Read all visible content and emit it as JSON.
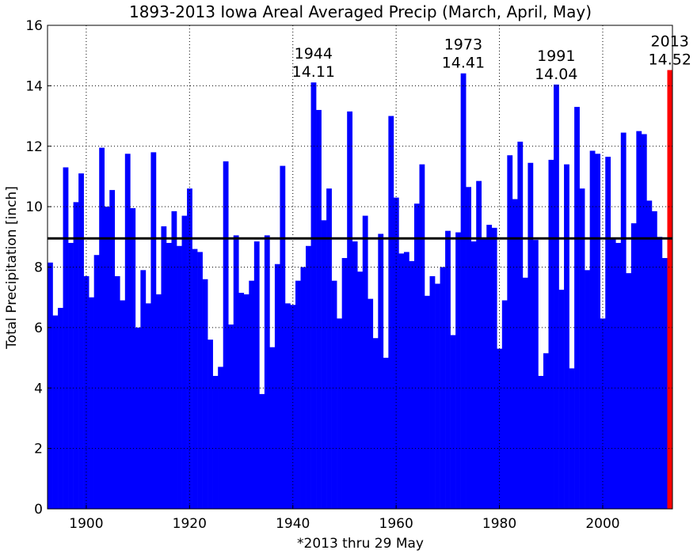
{
  "chart_data": {
    "type": "bar",
    "title": "1893-2013 Iowa Areal Averaged Precip (March, April, May)",
    "ylabel": "Total Precipitation [inch]",
    "footnote": "*2013 thru 29 May",
    "x": [
      1893,
      1894,
      1895,
      1896,
      1897,
      1898,
      1899,
      1900,
      1901,
      1902,
      1903,
      1904,
      1905,
      1906,
      1907,
      1908,
      1909,
      1910,
      1911,
      1912,
      1913,
      1914,
      1915,
      1916,
      1917,
      1918,
      1919,
      1920,
      1921,
      1922,
      1923,
      1924,
      1925,
      1926,
      1927,
      1928,
      1929,
      1930,
      1931,
      1932,
      1933,
      1934,
      1935,
      1936,
      1937,
      1938,
      1939,
      1940,
      1941,
      1942,
      1943,
      1944,
      1945,
      1946,
      1947,
      1948,
      1949,
      1950,
      1951,
      1952,
      1953,
      1954,
      1955,
      1956,
      1957,
      1958,
      1959,
      1960,
      1961,
      1962,
      1963,
      1964,
      1965,
      1966,
      1967,
      1968,
      1969,
      1970,
      1971,
      1972,
      1973,
      1974,
      1975,
      1976,
      1977,
      1978,
      1979,
      1980,
      1981,
      1982,
      1983,
      1984,
      1985,
      1986,
      1987,
      1988,
      1989,
      1990,
      1991,
      1992,
      1993,
      1994,
      1995,
      1996,
      1997,
      1998,
      1999,
      2000,
      2001,
      2002,
      2003,
      2004,
      2005,
      2006,
      2007,
      2008,
      2009,
      2010,
      2011,
      2012,
      2013
    ],
    "values": [
      8.15,
      6.4,
      6.65,
      11.3,
      8.8,
      10.15,
      11.1,
      7.7,
      7.0,
      8.4,
      11.95,
      10.0,
      10.55,
      7.7,
      6.9,
      11.75,
      9.95,
      6.0,
      7.9,
      6.8,
      11.8,
      7.1,
      9.35,
      8.8,
      9.85,
      8.7,
      9.7,
      10.6,
      8.6,
      8.5,
      7.6,
      5.6,
      4.4,
      4.7,
      11.5,
      6.1,
      9.05,
      7.15,
      7.1,
      7.55,
      8.85,
      3.8,
      9.05,
      5.35,
      8.1,
      11.35,
      6.8,
      6.75,
      7.55,
      8.0,
      8.7,
      14.11,
      13.2,
      9.55,
      10.6,
      7.55,
      6.3,
      8.3,
      13.15,
      8.85,
      7.85,
      9.7,
      6.95,
      5.65,
      9.1,
      5.0,
      13.0,
      10.3,
      8.45,
      8.5,
      8.2,
      10.1,
      11.4,
      7.05,
      7.7,
      7.45,
      8.0,
      9.2,
      5.75,
      9.15,
      14.41,
      10.65,
      8.85,
      10.85,
      8.95,
      9.4,
      9.3,
      5.3,
      6.9,
      11.7,
      10.25,
      12.15,
      7.65,
      11.45,
      8.9,
      4.4,
      5.15,
      11.55,
      14.04,
      7.25,
      11.4,
      4.65,
      13.3,
      10.6,
      7.9,
      11.85,
      11.75,
      6.3,
      11.65,
      8.95,
      8.8,
      12.45,
      7.8,
      9.45,
      12.5,
      12.4,
      10.2,
      9.85,
      9.0,
      8.3,
      14.52
    ],
    "color": "#0000ff",
    "last_color": "#ff0000",
    "mean": 8.95,
    "mean_color": "#000000",
    "annotations": [
      {
        "x": 1944,
        "y": 14.11
      },
      {
        "x": 1973,
        "y": 14.41
      },
      {
        "x": 1991,
        "y": 14.04
      },
      {
        "x": 2013,
        "y": 14.52
      }
    ],
    "xlim": [
      1892.5,
      2013.5
    ],
    "xticks": [
      1900,
      1920,
      1940,
      1960,
      1980,
      2000
    ],
    "ylim": [
      0,
      16
    ],
    "yticks": [
      0,
      2,
      4,
      6,
      8,
      10,
      12,
      14,
      16
    ],
    "grid": true
  }
}
